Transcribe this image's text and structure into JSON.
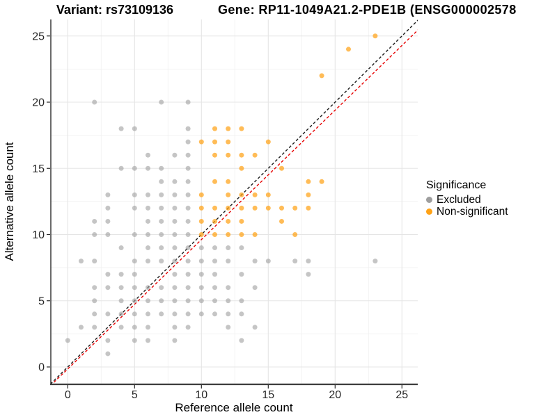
{
  "titles": {
    "variant": "Variant: rs73109136",
    "gene": "Gene: RP11-1049A21.2-PDE1B (ENSG000002578"
  },
  "axes": {
    "x_label": "Reference allele count",
    "y_label": "Alternative allele count",
    "x_ticks": [
      0,
      5,
      10,
      15,
      20,
      25
    ],
    "y_ticks": [
      0,
      5,
      10,
      15,
      20,
      25
    ],
    "x_range": [
      -1.3,
      26.3
    ],
    "y_range": [
      -1.3,
      26.3
    ],
    "grid": "on"
  },
  "legend": {
    "title": "Significance",
    "items": [
      {
        "label": "Excluded",
        "color": "#9e9e9e"
      },
      {
        "label": "Non-significant",
        "color": "#FFA216"
      }
    ]
  },
  "chart_data": {
    "type": "scatter",
    "title": "Variant: rs73109136 / Gene: RP11-1049A21.2-PDE1B",
    "xlabel": "Reference allele count",
    "ylabel": "Alternative allele count",
    "xlim": [
      -1.3,
      26.3
    ],
    "ylim": [
      -1.3,
      26.3
    ],
    "legend_position": "right",
    "series": [
      {
        "name": "Excluded",
        "color": "#9e9e9e",
        "opacity": 0.6,
        "points": [
          [
            2,
            20
          ],
          [
            7,
            20
          ],
          [
            9,
            20
          ],
          [
            4,
            18
          ],
          [
            5,
            18
          ],
          [
            9,
            18
          ],
          [
            9,
            17
          ],
          [
            6,
            16
          ],
          [
            8,
            16
          ],
          [
            9,
            16
          ],
          [
            4,
            15
          ],
          [
            5,
            15
          ],
          [
            6,
            15
          ],
          [
            7,
            15
          ],
          [
            9,
            15
          ],
          [
            7,
            14
          ],
          [
            8,
            14
          ],
          [
            9,
            14
          ],
          [
            3,
            13
          ],
          [
            5,
            13
          ],
          [
            6,
            13
          ],
          [
            7,
            13
          ],
          [
            8,
            13
          ],
          [
            9,
            13
          ],
          [
            3,
            12
          ],
          [
            5,
            12
          ],
          [
            6,
            12
          ],
          [
            7,
            12
          ],
          [
            8,
            12
          ],
          [
            9,
            12
          ],
          [
            2,
            11
          ],
          [
            3,
            11
          ],
          [
            6,
            11
          ],
          [
            7,
            11
          ],
          [
            8,
            11
          ],
          [
            9,
            11
          ],
          [
            2,
            10
          ],
          [
            3,
            10
          ],
          [
            5,
            10
          ],
          [
            6,
            10
          ],
          [
            7,
            10
          ],
          [
            8,
            10
          ],
          [
            9,
            10
          ],
          [
            4,
            9
          ],
          [
            6,
            9
          ],
          [
            7,
            9
          ],
          [
            8,
            9
          ],
          [
            9,
            9
          ],
          [
            10,
            9
          ],
          [
            11,
            9
          ],
          [
            12,
            9
          ],
          [
            13,
            9
          ],
          [
            1,
            8
          ],
          [
            2,
            8
          ],
          [
            5,
            8
          ],
          [
            6,
            8
          ],
          [
            7,
            8
          ],
          [
            8,
            8
          ],
          [
            9,
            8
          ],
          [
            10,
            8
          ],
          [
            11,
            8
          ],
          [
            12,
            8
          ],
          [
            14,
            8
          ],
          [
            15,
            8
          ],
          [
            17,
            8
          ],
          [
            18,
            8
          ],
          [
            23,
            8
          ],
          [
            3,
            7
          ],
          [
            4,
            7
          ],
          [
            5,
            7
          ],
          [
            8,
            7
          ],
          [
            9,
            7
          ],
          [
            10,
            7
          ],
          [
            11,
            7
          ],
          [
            13,
            7
          ],
          [
            18,
            7
          ],
          [
            2,
            6
          ],
          [
            3,
            6
          ],
          [
            4,
            6
          ],
          [
            5,
            6
          ],
          [
            6,
            6
          ],
          [
            7,
            6
          ],
          [
            8,
            6
          ],
          [
            9,
            6
          ],
          [
            10,
            6
          ],
          [
            11,
            6
          ],
          [
            12,
            6
          ],
          [
            14,
            6
          ],
          [
            2,
            5
          ],
          [
            4,
            5
          ],
          [
            5,
            5
          ],
          [
            6,
            5
          ],
          [
            7,
            5
          ],
          [
            8,
            5
          ],
          [
            9,
            5
          ],
          [
            10,
            5
          ],
          [
            11,
            5
          ],
          [
            12,
            5
          ],
          [
            13,
            5
          ],
          [
            2,
            4
          ],
          [
            3,
            4
          ],
          [
            4,
            4
          ],
          [
            5,
            4
          ],
          [
            6,
            4
          ],
          [
            7,
            4
          ],
          [
            8,
            4
          ],
          [
            9,
            4
          ],
          [
            10,
            4
          ],
          [
            11,
            4
          ],
          [
            12,
            4
          ],
          [
            13,
            4
          ],
          [
            1,
            3
          ],
          [
            2,
            3
          ],
          [
            4,
            3
          ],
          [
            5,
            3
          ],
          [
            6,
            3
          ],
          [
            8,
            3
          ],
          [
            9,
            3
          ],
          [
            12,
            3
          ],
          [
            14,
            3
          ],
          [
            0,
            2
          ],
          [
            3,
            2
          ],
          [
            5,
            2
          ],
          [
            6,
            2
          ],
          [
            8,
            2
          ],
          [
            13,
            2
          ],
          [
            3,
            1
          ]
        ]
      },
      {
        "name": "Non-significant",
        "color": "#FFA216",
        "opacity": 0.72,
        "points": [
          [
            23,
            25
          ],
          [
            21,
            24
          ],
          [
            19,
            22
          ],
          [
            11,
            18
          ],
          [
            12,
            18
          ],
          [
            13,
            18
          ],
          [
            10,
            17
          ],
          [
            11,
            17
          ],
          [
            12,
            17
          ],
          [
            15,
            17
          ],
          [
            11,
            16
          ],
          [
            12,
            16
          ],
          [
            13,
            16
          ],
          [
            14,
            16
          ],
          [
            13,
            15
          ],
          [
            16,
            15
          ],
          [
            11,
            14
          ],
          [
            12,
            14
          ],
          [
            18,
            14
          ],
          [
            19,
            14
          ],
          [
            10,
            13
          ],
          [
            12,
            13
          ],
          [
            13,
            13
          ],
          [
            14,
            13
          ],
          [
            15,
            13
          ],
          [
            18,
            13
          ],
          [
            10,
            12
          ],
          [
            11,
            12
          ],
          [
            12,
            12
          ],
          [
            13,
            12
          ],
          [
            14,
            12
          ],
          [
            15,
            12
          ],
          [
            16,
            12
          ],
          [
            17,
            12
          ],
          [
            18,
            12
          ],
          [
            10,
            11
          ],
          [
            11,
            11
          ],
          [
            12,
            11
          ],
          [
            13,
            11
          ],
          [
            16,
            11
          ],
          [
            10,
            10
          ],
          [
            11,
            10
          ],
          [
            12,
            10
          ],
          [
            13,
            10
          ],
          [
            14,
            10
          ],
          [
            17,
            10
          ]
        ]
      }
    ],
    "lines": [
      {
        "name": "identity-line",
        "color": "#1a1a1a",
        "style": "dashed",
        "from": [
          -1.3,
          -1.3
        ],
        "to": [
          26.3,
          26.3
        ]
      },
      {
        "name": "fit-line",
        "color": "#e60000",
        "style": "dashed",
        "from": [
          -1.3,
          -1.42
        ],
        "to": [
          26.3,
          25.55
        ]
      }
    ]
  }
}
